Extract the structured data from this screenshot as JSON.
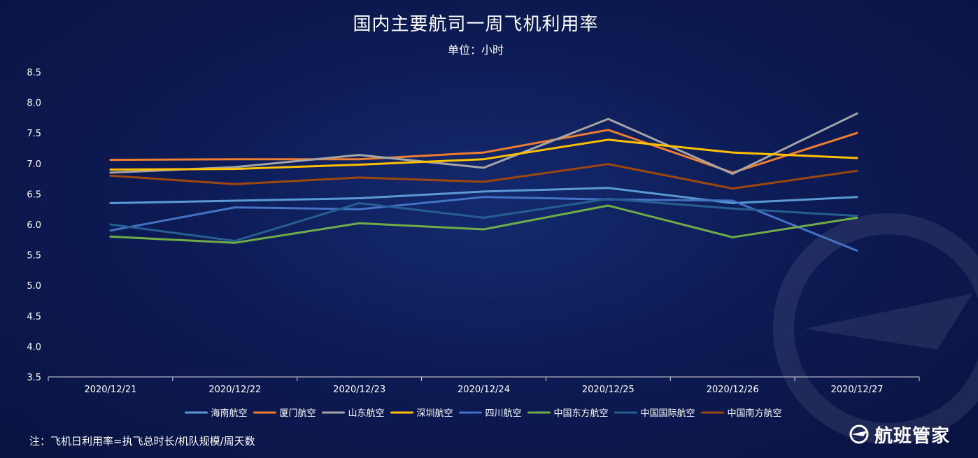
{
  "title": "国内主要航司一周飞机利用率",
  "subtitle": "单位：小时",
  "note": "注：飞机日利用率=执飞总时长/机队规模/周天数",
  "brand": {
    "name": "航班管家",
    "icon": "plane-globe-icon"
  },
  "chart_data": {
    "type": "line",
    "title": "国内主要航司一周飞机利用率",
    "subtitle": "单位：小时",
    "x": [
      "2020/12/21",
      "2020/12/22",
      "2020/12/23",
      "2020/12/24",
      "2020/12/25",
      "2020/12/26",
      "2020/12/27"
    ],
    "ylim": [
      3.5,
      8.5
    ],
    "yticks": [
      "3.5",
      "4.0",
      "4.5",
      "5.0",
      "5.5",
      "6.0",
      "6.5",
      "7.0",
      "7.5",
      "8.0",
      "8.5"
    ],
    "grid": false,
    "legend_position": "bottom",
    "series": [
      {
        "name": "海南航空",
        "color": "#5b9bd5",
        "values": [
          6.35,
          6.39,
          6.43,
          6.54,
          6.6,
          6.35,
          6.45
        ]
      },
      {
        "name": "厦门航空",
        "color": "#ed7d31",
        "values": [
          7.06,
          7.07,
          7.07,
          7.18,
          7.55,
          6.85,
          7.5
        ]
      },
      {
        "name": "山东航空",
        "color": "#a5a5a5",
        "values": [
          6.85,
          6.94,
          7.14,
          6.93,
          7.73,
          6.83,
          7.82
        ]
      },
      {
        "name": "深圳航空",
        "color": "#ffc000",
        "values": [
          6.9,
          6.91,
          6.98,
          7.07,
          7.39,
          7.18,
          7.09
        ]
      },
      {
        "name": "四川航空",
        "color": "#4472c4",
        "values": [
          5.9,
          6.28,
          6.25,
          6.45,
          6.41,
          6.39,
          5.57
        ]
      },
      {
        "name": "中国东方航空",
        "color": "#70ad47",
        "values": [
          5.8,
          5.7,
          6.02,
          5.92,
          6.31,
          5.79,
          6.11
        ]
      },
      {
        "name": "中国国际航空",
        "color": "#255e91",
        "values": [
          6.0,
          5.73,
          6.35,
          6.11,
          6.42,
          6.26,
          6.14
        ]
      },
      {
        "name": "中国南方航空",
        "color": "#9e480e",
        "values": [
          6.8,
          6.66,
          6.77,
          6.7,
          6.99,
          6.59,
          6.88
        ]
      }
    ]
  }
}
